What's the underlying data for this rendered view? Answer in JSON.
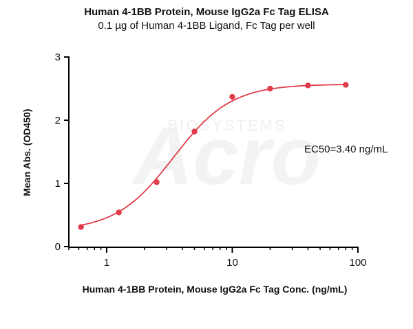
{
  "chart_data": {
    "type": "scatter",
    "title": "Human 4-1BB Protein, Mouse IgG2a Fc Tag ELISA",
    "subtitle": "0.1 µg of Human 4-1BB Ligand, Fc Tag per well",
    "xlabel": "Human 4-1BB Protein, Mouse IgG2a Fc Tag Conc. (ng/mL)",
    "ylabel": "Mean Abs. (OD450)",
    "x_scale": "log",
    "xlim": [
      0.5,
      100
    ],
    "ylim": [
      0,
      3
    ],
    "x_ticks": [
      1,
      10,
      100
    ],
    "x_tick_labels": [
      "1",
      "10",
      "100"
    ],
    "y_ticks": [
      0,
      1,
      2,
      3
    ],
    "y_tick_labels": [
      "0",
      "1",
      "2",
      "3"
    ],
    "grid": false,
    "annotation": "EC50=3.40 ng/mL",
    "watermark": "ACRO BIOSYSTEMS",
    "colors": {
      "series": "#e03c4a",
      "axis": "#000000"
    },
    "fit": {
      "bottom": 0.25,
      "top": 2.57,
      "ec50": 3.4,
      "hill": 1.9
    },
    "series": [
      {
        "x": [
          0.625,
          1.25,
          2.5,
          5,
          10,
          20,
          40,
          80
        ],
        "y": [
          0.31,
          0.54,
          1.02,
          1.82,
          2.37,
          2.5,
          2.55,
          2.56
        ]
      }
    ]
  }
}
